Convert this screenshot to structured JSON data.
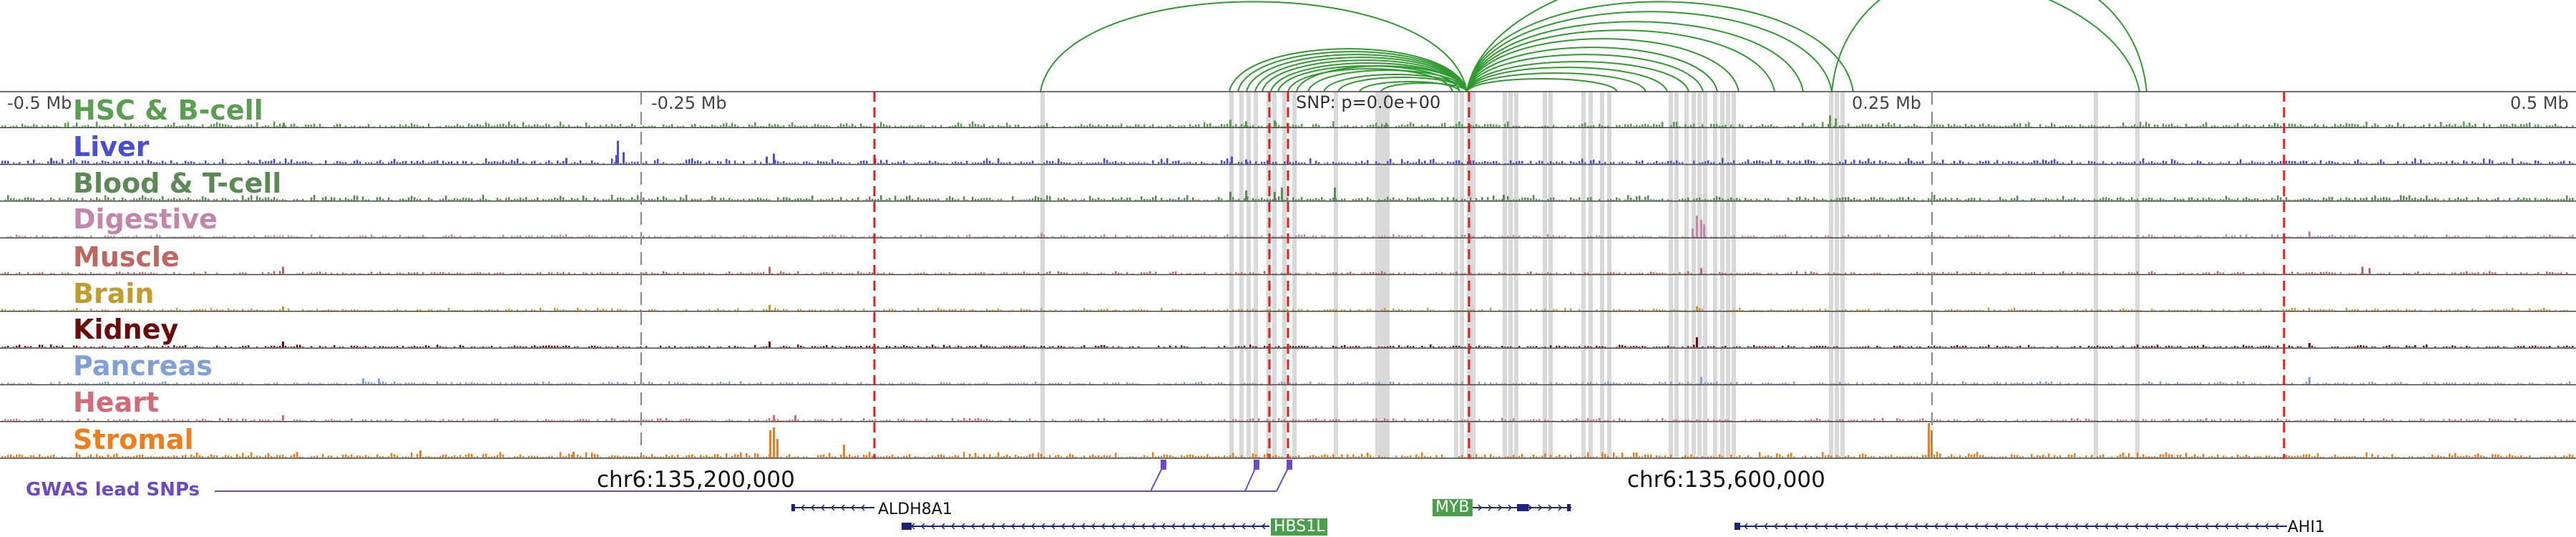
{
  "axis": {
    "ticks": [
      {
        "label": "-0.5 Mb",
        "pos": -0.5
      },
      {
        "label": "-0.25 Mb",
        "pos": -0.25
      },
      {
        "label": "0.25 Mb",
        "pos": 0.25
      },
      {
        "label": "0.5 Mb",
        "pos": 0.5
      }
    ],
    "snp_label": "SNP: p=0.0e+00"
  },
  "tracks": [
    {
      "name": "HSC & B-cell",
      "color": "#5a9e50"
    },
    {
      "name": "Liver",
      "color": "#4a4ed6"
    },
    {
      "name": "Blood & T-cell",
      "color": "#5c8a55"
    },
    {
      "name": "Digestive",
      "color": "#c585aa"
    },
    {
      "name": "Muscle",
      "color": "#c0665c"
    },
    {
      "name": "Brain",
      "color": "#c49a2a"
    },
    {
      "name": "Kidney",
      "color": "#6b0b0b"
    },
    {
      "name": "Pancreas",
      "color": "#7f9fd8"
    },
    {
      "name": "Heart",
      "color": "#d26b78"
    },
    {
      "name": "Stromal",
      "color": "#f07c1a"
    }
  ],
  "coordinates": [
    "chr6:135,200,000",
    "chr6:135,600,000"
  ],
  "gwas_label": "GWAS lead SNPs",
  "genes": [
    {
      "name": "ALDH8A1",
      "boxed": false
    },
    {
      "name": "HBS1L",
      "boxed": true,
      "box_color": "#4aa04a"
    },
    {
      "name": "MYB",
      "boxed": true,
      "box_color": "#4aa04a"
    },
    {
      "name": "AHI1",
      "boxed": false
    }
  ],
  "colors": {
    "loop": "#2f9a2f",
    "red_line": "#e21b1b",
    "highlight": "#d9d9d9",
    "gwas": "#6a4bc4",
    "gene": "#1a237e"
  }
}
